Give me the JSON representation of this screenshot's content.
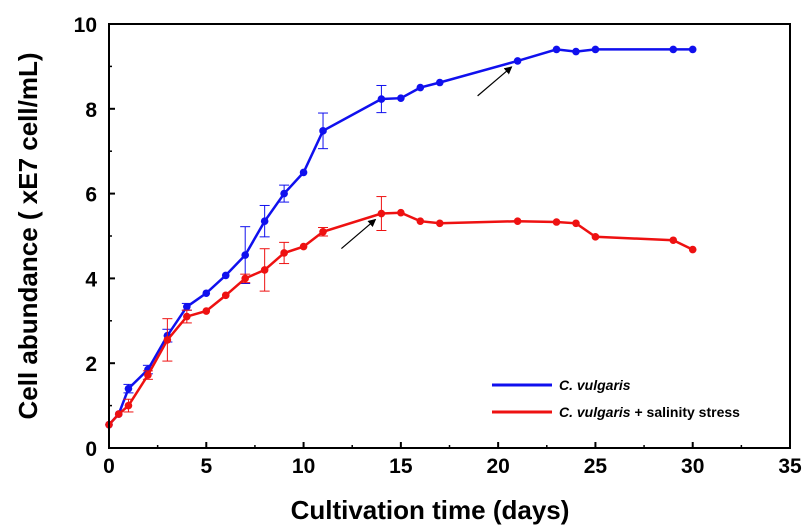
{
  "chart_data": {
    "type": "line",
    "title": "",
    "xlabel": "Cultivation time (days)",
    "ylabel": "Cell abundance ( xE7 cell/mL)",
    "xlim": [
      0,
      35
    ],
    "ylim": [
      0,
      10
    ],
    "x_ticks": [
      "0",
      "5",
      "10",
      "15",
      "20",
      "25",
      "30",
      "35"
    ],
    "y_ticks": [
      "0",
      "2",
      "4",
      "6",
      "8",
      "10"
    ],
    "grid": false,
    "legend_position": "bottom-right",
    "series": [
      {
        "name_italic": "C. vulgaris",
        "name_suffix": "",
        "color": "#1010ee",
        "points": [
          {
            "x": 0,
            "y": 0.55,
            "err": 0
          },
          {
            "x": 0.5,
            "y": 0.8,
            "err": 0
          },
          {
            "x": 1,
            "y": 1.4,
            "err": 0.1
          },
          {
            "x": 2,
            "y": 1.85,
            "err": 0.1
          },
          {
            "x": 3,
            "y": 2.65,
            "err": 0.15
          },
          {
            "x": 4,
            "y": 3.33,
            "err": 0.08
          },
          {
            "x": 5,
            "y": 3.65,
            "err": 0
          },
          {
            "x": 6,
            "y": 4.07,
            "err": 0
          },
          {
            "x": 7,
            "y": 4.55,
            "err": 0.67
          },
          {
            "x": 8,
            "y": 5.35,
            "err": 0.37
          },
          {
            "x": 9,
            "y": 6.0,
            "err": 0.2
          },
          {
            "x": 10,
            "y": 6.5,
            "err": 0
          },
          {
            "x": 11,
            "y": 7.48,
            "err": 0.42
          },
          {
            "x": 14,
            "y": 8.23,
            "err": 0.32
          },
          {
            "x": 15,
            "y": 8.25,
            "err": 0
          },
          {
            "x": 16,
            "y": 8.5,
            "err": 0
          },
          {
            "x": 17,
            "y": 8.62,
            "err": 0
          },
          {
            "x": 21,
            "y": 9.13,
            "err": 0
          },
          {
            "x": 23,
            "y": 9.4,
            "err": 0
          },
          {
            "x": 24,
            "y": 9.35,
            "err": 0
          },
          {
            "x": 25,
            "y": 9.4,
            "err": 0
          },
          {
            "x": 29,
            "y": 9.4,
            "err": 0
          },
          {
            "x": 30,
            "y": 9.4,
            "err": 0
          }
        ]
      },
      {
        "name_italic": "C. vulgaris",
        "name_suffix": " + salinity stress",
        "color": "#ee1111",
        "points": [
          {
            "x": 0,
            "y": 0.55,
            "err": 0
          },
          {
            "x": 0.5,
            "y": 0.8,
            "err": 0
          },
          {
            "x": 1,
            "y": 1.0,
            "err": 0.15
          },
          {
            "x": 2,
            "y": 1.72,
            "err": 0.1
          },
          {
            "x": 3,
            "y": 2.55,
            "err": 0.5
          },
          {
            "x": 4,
            "y": 3.1,
            "err": 0.15
          },
          {
            "x": 5,
            "y": 3.23,
            "err": 0
          },
          {
            "x": 6,
            "y": 3.6,
            "err": 0
          },
          {
            "x": 7,
            "y": 4.0,
            "err": 0.1
          },
          {
            "x": 8,
            "y": 4.2,
            "err": 0.5
          },
          {
            "x": 9,
            "y": 4.6,
            "err": 0.25
          },
          {
            "x": 10,
            "y": 4.75,
            "err": 0
          },
          {
            "x": 11,
            "y": 5.1,
            "err": 0.1
          },
          {
            "x": 14,
            "y": 5.53,
            "err": 0.4
          },
          {
            "x": 15,
            "y": 5.55,
            "err": 0
          },
          {
            "x": 16,
            "y": 5.35,
            "err": 0
          },
          {
            "x": 17,
            "y": 5.3,
            "err": 0
          },
          {
            "x": 21,
            "y": 5.35,
            "err": 0
          },
          {
            "x": 23,
            "y": 5.33,
            "err": 0
          },
          {
            "x": 24,
            "y": 5.3,
            "err": 0
          },
          {
            "x": 25,
            "y": 4.98,
            "err": 0
          },
          {
            "x": 29,
            "y": 4.9,
            "err": 0
          },
          {
            "x": 30,
            "y": 4.68,
            "err": 0
          }
        ]
      }
    ],
    "annotations": [
      {
        "type": "arrow",
        "x": 21,
        "y": 9.13
      },
      {
        "type": "arrow",
        "x": 14,
        "y": 5.53
      }
    ]
  }
}
